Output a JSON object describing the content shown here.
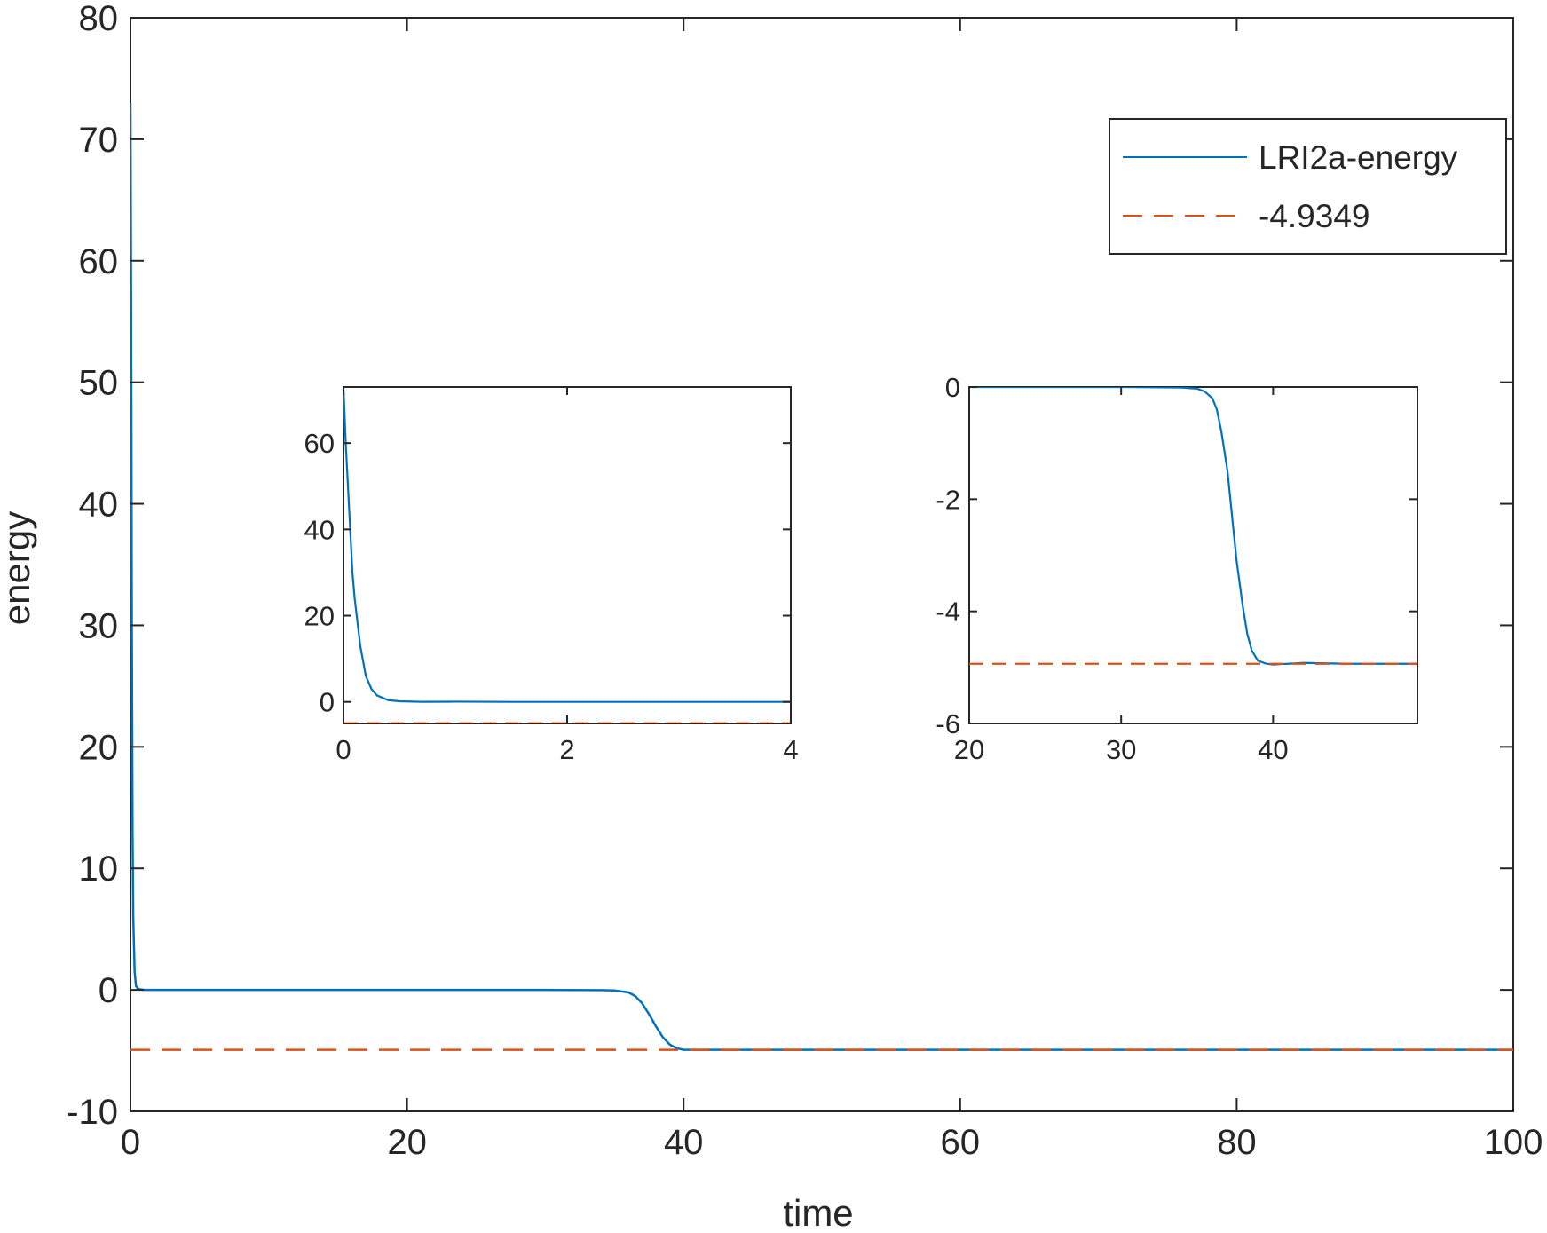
{
  "colors": {
    "series": "#0072BD",
    "reference": "#D95319",
    "axes": "#262626",
    "background": "#ffffff"
  },
  "chart_data": [
    {
      "id": "main",
      "type": "line",
      "title": "",
      "xlabel": "time",
      "ylabel": "energy",
      "xlim": [
        0,
        100
      ],
      "ylim": [
        -10,
        80
      ],
      "xticks": [
        0,
        20,
        40,
        60,
        80,
        100
      ],
      "yticks": [
        -10,
        0,
        10,
        20,
        30,
        40,
        50,
        60,
        70,
        80
      ],
      "grid": false,
      "legend": {
        "placement": "top-right",
        "entries": [
          "LRI2a-energy",
          "-4.9349"
        ]
      },
      "series": [
        {
          "name": "LRI2a-energy",
          "style": "solid",
          "color": "#0072BD",
          "x": [
            0,
            0.05,
            0.1,
            0.15,
            0.2,
            0.3,
            0.4,
            0.6,
            1,
            2,
            5,
            10,
            20,
            30,
            34,
            35,
            36,
            36.5,
            37,
            37.5,
            38,
            38.5,
            39,
            39.5,
            40,
            41,
            45,
            50,
            60,
            70,
            80,
            90,
            100
          ],
          "y": [
            73,
            55,
            30,
            13,
            6,
            1.5,
            0.3,
            0.05,
            0,
            0,
            0,
            0,
            0,
            0,
            -0.02,
            -0.05,
            -0.2,
            -0.5,
            -1.1,
            -2.0,
            -3.0,
            -3.9,
            -4.5,
            -4.8,
            -4.93,
            -4.935,
            -4.935,
            -4.935,
            -4.935,
            -4.935,
            -4.935,
            -4.935,
            -4.935
          ]
        },
        {
          "name": "-4.9349",
          "style": "dashed",
          "color": "#D95319",
          "x": [
            0,
            100
          ],
          "y": [
            -4.9349,
            -4.9349
          ]
        }
      ]
    },
    {
      "id": "inset-left",
      "type": "line",
      "title": "",
      "xlabel": "",
      "ylabel": "",
      "xlim": [
        0,
        4
      ],
      "ylim": [
        -5,
        73
      ],
      "xticks": [
        0,
        2,
        4
      ],
      "yticks": [
        0,
        20,
        40,
        60
      ],
      "grid": false,
      "series": [
        {
          "style": "solid",
          "color": "#0072BD",
          "x": [
            0,
            0.02,
            0.05,
            0.08,
            0.1,
            0.15,
            0.2,
            0.25,
            0.3,
            0.4,
            0.5,
            0.7,
            1,
            1.5,
            2,
            3,
            4
          ],
          "y": [
            73,
            60,
            45,
            30,
            24,
            13,
            6,
            3,
            1.5,
            0.4,
            0.15,
            0.02,
            0.05,
            0,
            0,
            0,
            0
          ]
        },
        {
          "style": "dashed",
          "color": "#D95319",
          "x": [
            0,
            4
          ],
          "y": [
            -4.9349,
            -4.9349
          ]
        }
      ]
    },
    {
      "id": "inset-right",
      "type": "line",
      "title": "",
      "xlabel": "",
      "ylabel": "",
      "xlim": [
        20,
        49.5
      ],
      "ylim": [
        -6,
        0
      ],
      "xticks": [
        20,
        30,
        40
      ],
      "yticks": [
        -6,
        -4,
        -2,
        0
      ],
      "grid": false,
      "series": [
        {
          "style": "solid",
          "color": "#0072BD",
          "x": [
            20,
            25,
            30,
            34,
            35,
            35.5,
            36,
            36.3,
            36.6,
            37,
            37.3,
            37.6,
            38,
            38.3,
            38.6,
            39,
            39.5,
            40,
            40.5,
            41,
            42,
            45,
            49.5
          ],
          "y": [
            0,
            0,
            0,
            -0.01,
            -0.03,
            -0.08,
            -0.2,
            -0.4,
            -0.8,
            -1.5,
            -2.3,
            -3.1,
            -3.9,
            -4.4,
            -4.7,
            -4.88,
            -4.93,
            -4.95,
            -4.94,
            -4.935,
            -4.92,
            -4.935,
            -4.935
          ]
        },
        {
          "style": "dashed",
          "color": "#D95319",
          "x": [
            20,
            49.5
          ],
          "y": [
            -4.9349,
            -4.9349
          ]
        }
      ]
    }
  ]
}
